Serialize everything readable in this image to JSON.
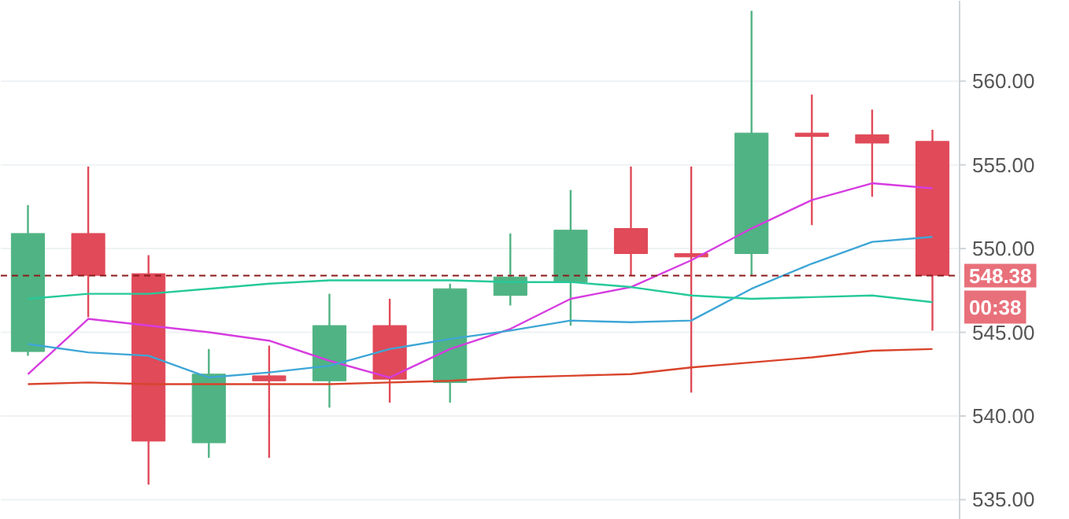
{
  "chart_data": {
    "type": "candlestick",
    "categories": [
      null,
      null,
      null,
      null,
      null,
      null,
      null,
      null,
      null,
      null,
      null,
      null,
      null,
      null,
      null,
      null
    ],
    "ylim": [
      533.8,
      564.8
    ],
    "yticks": [
      {
        "value": 535,
        "label": "535.00"
      },
      {
        "value": 540,
        "label": "540.00"
      },
      {
        "value": 545,
        "label": "545.00"
      },
      {
        "value": 550,
        "label": "550.00"
      },
      {
        "value": 555,
        "label": "555.00"
      },
      {
        "value": 560,
        "label": "560.00"
      }
    ],
    "tick_labels": "y",
    "grid": "y",
    "ohlc": [
      [
        543.85,
        552.6,
        543.6,
        550.9
      ],
      [
        550.9,
        554.9,
        545.9,
        548.4
      ],
      [
        548.5,
        549.6,
        535.9,
        538.5
      ],
      [
        538.4,
        544.0,
        537.5,
        542.5
      ],
      [
        542.4,
        544.2,
        537.5,
        542.1
      ],
      [
        542.1,
        547.3,
        540.5,
        545.4
      ],
      [
        545.4,
        547.0,
        540.8,
        542.2
      ],
      [
        542.0,
        547.9,
        540.8,
        547.6
      ],
      [
        547.2,
        550.9,
        546.6,
        548.3
      ],
      [
        548.0,
        553.5,
        545.4,
        551.1
      ],
      [
        551.2,
        554.9,
        548.4,
        549.7
      ],
      [
        549.7,
        554.9,
        541.4,
        549.5
      ],
      [
        549.7,
        564.2,
        548.4,
        556.9
      ],
      [
        556.9,
        559.2,
        551.4,
        556.7
      ],
      [
        556.8,
        558.3,
        553.1,
        556.3
      ],
      [
        556.4,
        557.1,
        545.1,
        548.4
      ]
    ],
    "colors": [
      "#50b383",
      "#e04a59",
      "#e04a59",
      "#50b383",
      "#e04a59",
      "#50b383",
      "#e04a59",
      "#50b383",
      "#50b383",
      "#50b383",
      "#e04a59",
      "#e04a59",
      "#50b383",
      "#e04a59",
      "#e04a59",
      "#e04a59"
    ],
    "series": [
      {
        "type": "line",
        "color": "#d63ce0",
        "values": [
          542.5,
          545.8,
          545.4,
          545.0,
          544.5,
          543.3,
          542.3,
          544.0,
          545.2,
          547.0,
          547.7,
          549.3,
          551.2,
          552.9,
          553.9,
          553.6
        ]
      },
      {
        "type": "line",
        "color": "#3ea6d6",
        "values": [
          544.3,
          543.8,
          543.6,
          542.3,
          542.6,
          543.0,
          544.0,
          544.6,
          545.1,
          545.7,
          545.6,
          545.7,
          547.6,
          549.1,
          550.4,
          550.7
        ]
      },
      {
        "type": "line",
        "color": "#26c99a",
        "values": [
          547.0,
          547.3,
          547.3,
          547.6,
          547.9,
          548.1,
          548.1,
          548.1,
          548.0,
          548.0,
          547.7,
          547.2,
          547.0,
          547.1,
          547.2,
          546.8
        ]
      },
      {
        "type": "line",
        "color": "#d9442c",
        "values": [
          541.9,
          542.0,
          541.9,
          541.9,
          541.9,
          541.9,
          542.0,
          542.1,
          542.3,
          542.4,
          542.5,
          542.9,
          543.2,
          543.5,
          543.9,
          544.0
        ]
      }
    ],
    "ref_lines": [
      {
        "axis": "y",
        "value": 548.38,
        "label": "548.38",
        "color": "#8b1a1a",
        "line_style": "dashed"
      }
    ],
    "annotations": [
      "00:38"
    ]
  }
}
